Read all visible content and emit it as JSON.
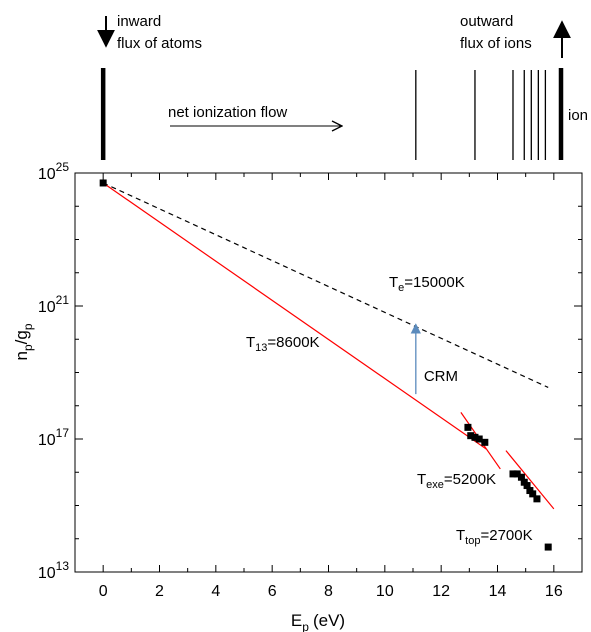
{
  "chart_data": {
    "type": "scatter",
    "xlabel_main": "E",
    "xlabel_sub": "p",
    "xlabel_unit": "(eV)",
    "ylabel_n": "n",
    "ylabel_nsub": "p",
    "ylabel_g": "/g",
    "ylabel_gsub": "p",
    "x_ticks": [
      "0",
      "2",
      "4",
      "6",
      "8",
      "10",
      "12",
      "14",
      "16"
    ],
    "y_ticks": [
      {
        "base": "10",
        "exp": "13"
      },
      {
        "base": "10",
        "exp": "17"
      },
      {
        "base": "10",
        "exp": "21"
      },
      {
        "base": "10",
        "exp": "25"
      }
    ],
    "xlim": [
      -1,
      17
    ],
    "ylim_log10": [
      13,
      25
    ],
    "points": [
      {
        "x": 0.0,
        "y": 24.7
      },
      {
        "x": 12.95,
        "y": 17.35
      },
      {
        "x": 13.05,
        "y": 17.1
      },
      {
        "x": 13.2,
        "y": 17.05
      },
      {
        "x": 13.35,
        "y": 17.0
      },
      {
        "x": 13.55,
        "y": 16.9
      },
      {
        "x": 14.55,
        "y": 15.95
      },
      {
        "x": 14.7,
        "y": 15.95
      },
      {
        "x": 14.85,
        "y": 15.85
      },
      {
        "x": 14.95,
        "y": 15.7
      },
      {
        "x": 15.05,
        "y": 15.6
      },
      {
        "x": 15.15,
        "y": 15.45
      },
      {
        "x": 15.25,
        "y": 15.35
      },
      {
        "x": 15.4,
        "y": 15.2
      },
      {
        "x": 15.8,
        "y": 13.75
      }
    ],
    "fits": [
      {
        "label_T": "T",
        "label_sub": "13",
        "label_val": "=8600K",
        "color": "#ff0000",
        "x": [
          0.0,
          13.6
        ],
        "y": [
          24.7,
          16.7
        ]
      },
      {
        "label_T": "T",
        "label_sub": "exe",
        "label_val": "=5200K",
        "color": "#ff0000",
        "x": [
          12.7,
          14.1
        ],
        "y": [
          17.8,
          16.1
        ]
      },
      {
        "label_T": "T",
        "label_sub": "top",
        "label_val": "=2700K",
        "color": "#ff0000",
        "x": [
          14.3,
          16.0
        ],
        "y": [
          16.65,
          14.9
        ]
      }
    ],
    "dashed_line": {
      "label_T": "T",
      "label_sub": "e",
      "label_val": "=15000K",
      "color": "#000000",
      "x": [
        0.0,
        15.8
      ],
      "y": [
        24.7,
        18.55
      ]
    },
    "crm_arrow": {
      "label": "CRM",
      "color": "#5b8bbd",
      "x": 11.1,
      "y_from": 18.35,
      "y_to": 20.45
    },
    "top_panel": {
      "inward_line1": "inward",
      "inward_line2": "flux of atoms",
      "outward_line1": "outward",
      "outward_line2": "flux of ions",
      "net_flow": "net ionization flow",
      "ion_label": "ion",
      "level_lines_eV": [
        0,
        11.1,
        13.2,
        14.55,
        14.95,
        15.2,
        15.45,
        15.7
      ]
    }
  }
}
